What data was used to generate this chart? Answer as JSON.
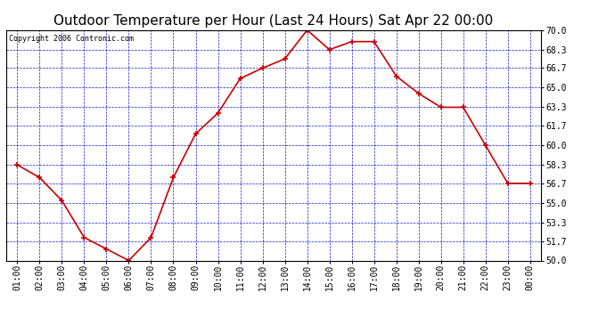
{
  "title": "Outdoor Temperature per Hour (Last 24 Hours) Sat Apr 22 00:00",
  "copyright": "Copyright 2006 Contronic.com",
  "x_labels": [
    "01:00",
    "02:00",
    "03:00",
    "04:00",
    "05:00",
    "06:00",
    "07:00",
    "08:00",
    "09:00",
    "10:00",
    "11:00",
    "12:00",
    "13:00",
    "14:00",
    "15:00",
    "16:00",
    "17:00",
    "18:00",
    "19:00",
    "20:00",
    "21:00",
    "22:00",
    "23:00",
    "00:00"
  ],
  "y_values": [
    58.3,
    57.2,
    55.2,
    52.0,
    51.0,
    50.0,
    52.0,
    57.2,
    61.0,
    62.8,
    65.8,
    66.7,
    67.5,
    70.0,
    68.3,
    69.0,
    69.0,
    66.0,
    64.5,
    63.3,
    63.3,
    60.0,
    56.7,
    56.7
  ],
  "line_color": "#cc0000",
  "marker_color": "#cc0000",
  "bg_color": "#ffffff",
  "plot_bg_color": "#ffffff",
  "grid_color": "#0000cc",
  "title_fontsize": 11,
  "copyright_fontsize": 6,
  "tick_fontsize": 7,
  "ylim": [
    50.0,
    70.0
  ],
  "yticks": [
    50.0,
    51.7,
    53.3,
    55.0,
    56.7,
    58.3,
    60.0,
    61.7,
    63.3,
    65.0,
    66.7,
    68.3,
    70.0
  ]
}
